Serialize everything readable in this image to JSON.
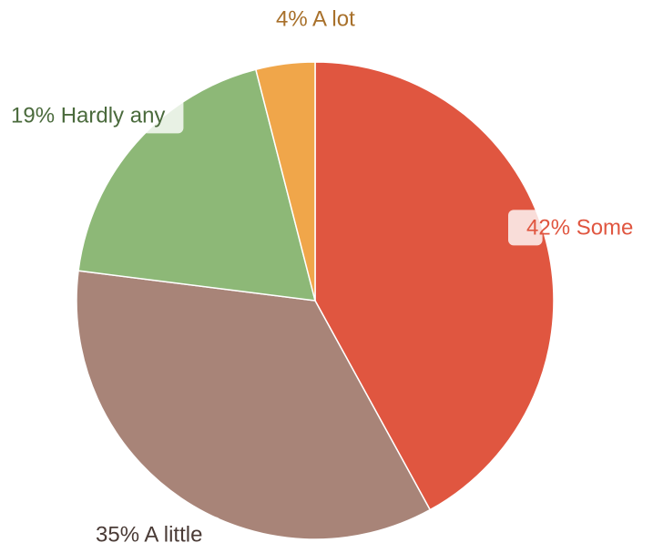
{
  "chart_data": {
    "type": "pie",
    "values": [
      42,
      35,
      19,
      4
    ],
    "value_labels": [
      "42% Some",
      "35% A little",
      "19% Hardly any",
      "4% A lot"
    ],
    "colors": [
      "#e05640",
      "#a88478",
      "#8db877",
      "#f0a64a"
    ],
    "label_colors": [
      "#e05640",
      "#4a3b36",
      "#4a6a3c",
      "#a8702a"
    ]
  }
}
